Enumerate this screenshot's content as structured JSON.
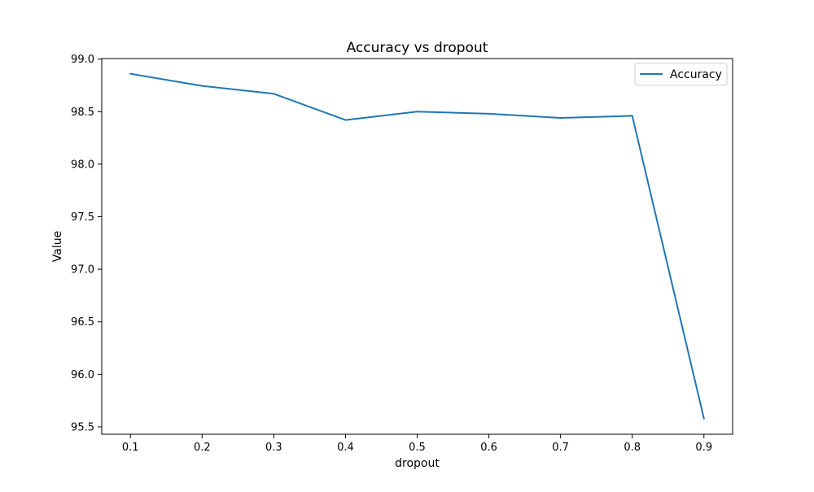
{
  "chart_data": {
    "type": "line",
    "title": "Accuracy vs dropout",
    "xlabel": "dropout",
    "ylabel": "Value",
    "x": [
      0.1,
      0.2,
      0.3,
      0.4,
      0.5,
      0.6,
      0.7,
      0.8,
      0.9
    ],
    "series": [
      {
        "name": "Accuracy",
        "color": "#1f77b4",
        "values": [
          98.86,
          98.745,
          98.67,
          98.42,
          98.5,
          98.48,
          98.44,
          98.46,
          95.58
        ]
      }
    ],
    "xlim": [
      0.06,
      0.94
    ],
    "ylim": [
      95.43,
      99.005
    ],
    "xticks": [
      "0.1",
      "0.2",
      "0.3",
      "0.4",
      "0.5",
      "0.6",
      "0.7",
      "0.8",
      "0.9"
    ],
    "xtick_values": [
      0.1,
      0.2,
      0.3,
      0.4,
      0.5,
      0.6,
      0.7,
      0.8,
      0.9
    ],
    "yticks": [
      "95.5",
      "96.0",
      "96.5",
      "97.0",
      "97.5",
      "98.0",
      "98.5",
      "99.0"
    ],
    "ytick_values": [
      95.5,
      96.0,
      96.5,
      97.0,
      97.5,
      98.0,
      98.5,
      99.0
    ],
    "grid": false,
    "legend_position": "top-right"
  }
}
